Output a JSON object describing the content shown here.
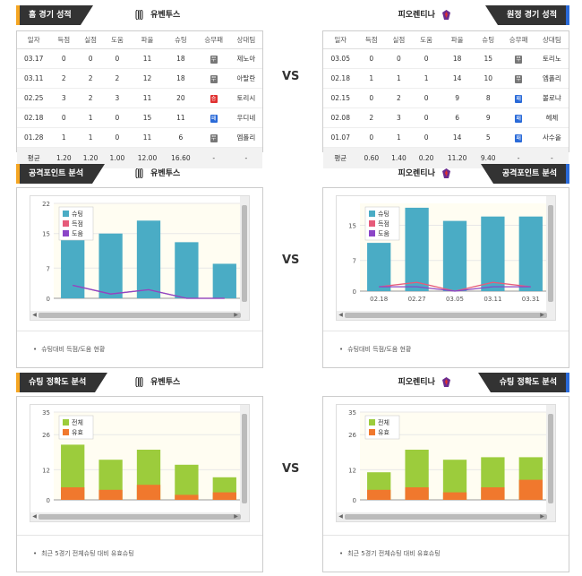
{
  "vs_label": "VS",
  "teams": {
    "home": "유벤투스",
    "away": "피오렌티나"
  },
  "record": {
    "home": {
      "title": "홈 경기 성적",
      "headers": [
        "일자",
        "득점",
        "실점",
        "도움",
        "파울",
        "슈팅",
        "승무패",
        "상대팀"
      ],
      "rows": [
        [
          "03.17",
          "0",
          "0",
          "0",
          "11",
          "18",
          "무",
          "제노아"
        ],
        [
          "03.11",
          "2",
          "2",
          "2",
          "12",
          "18",
          "무",
          "아탈란"
        ],
        [
          "02.25",
          "3",
          "2",
          "3",
          "11",
          "20",
          "승",
          "토리시"
        ],
        [
          "02.18",
          "0",
          "1",
          "0",
          "15",
          "11",
          "패",
          "우디네"
        ],
        [
          "01.28",
          "1",
          "1",
          "0",
          "11",
          "6",
          "무",
          "엠폴리"
        ]
      ],
      "avg": [
        "평균",
        "1.20",
        "1.20",
        "1.00",
        "12.00",
        "16.60",
        "-",
        "-"
      ]
    },
    "away": {
      "title": "원정 경기 성적",
      "headers": [
        "일자",
        "득점",
        "실점",
        "도움",
        "파울",
        "슈팅",
        "승무패",
        "상대팀"
      ],
      "rows": [
        [
          "03.05",
          "0",
          "0",
          "0",
          "18",
          "15",
          "무",
          "토리노"
        ],
        [
          "02.18",
          "1",
          "1",
          "1",
          "14",
          "10",
          "무",
          "엠폴리"
        ],
        [
          "02.15",
          "0",
          "2",
          "0",
          "9",
          "8",
          "패",
          "볼로냐"
        ],
        [
          "02.08",
          "2",
          "3",
          "0",
          "6",
          "9",
          "패",
          "헤체"
        ],
        [
          "01.07",
          "0",
          "1",
          "0",
          "14",
          "5",
          "패",
          "사수올"
        ]
      ],
      "avg": [
        "평균",
        "0.60",
        "1.40",
        "0.20",
        "11.20",
        "9.40",
        "-",
        "-"
      ]
    }
  },
  "attack": {
    "title": "공격포인트 분석",
    "caption": "슈팅대비 득점/도움 현황",
    "colors": {
      "shoot": "#4aacc5",
      "goal": "#e65b7a",
      "assist": "#8b45c7"
    },
    "home": {
      "chart_data": {
        "type": "bar",
        "categories": [
          "",
          "",
          "",
          "",
          ""
        ],
        "series": [
          {
            "name": "슈팅",
            "values": [
              14,
              15,
              18,
              13,
              8
            ]
          },
          {
            "name": "득점",
            "values": [
              3,
              1,
              2,
              0,
              0
            ]
          },
          {
            "name": "도움",
            "values": [
              3,
              1,
              2,
              0,
              0
            ]
          }
        ],
        "yticks": [
          "22",
          "15",
          "7",
          "0"
        ],
        "ylim": [
          0,
          22
        ]
      }
    },
    "away": {
      "chart_data": {
        "type": "bar",
        "categories": [
          "02.18",
          "02.27",
          "03.05",
          "03.11",
          "03.31"
        ],
        "series": [
          {
            "name": "슈팅",
            "values": [
              11,
              19,
              16,
              17,
              17
            ]
          },
          {
            "name": "득점",
            "values": [
              1,
              2,
              0,
              2,
              1
            ]
          },
          {
            "name": "도움",
            "values": [
              1,
              1,
              0,
              1,
              1
            ]
          }
        ],
        "yticks": [
          "15",
          "7",
          "0"
        ],
        "ylim": [
          0,
          20
        ]
      }
    }
  },
  "accuracy": {
    "title": "슈팅 정확도 분석",
    "caption": "최근 5경기 전체슈팅 대비 유효슈팅",
    "colors": {
      "total": "#9ccc3c",
      "on_target": "#f0782d"
    },
    "home": {
      "chart_data": {
        "type": "bar",
        "categories": [
          "",
          "",
          "",
          "",
          ""
        ],
        "series": [
          {
            "name": "전체",
            "values": [
              22,
              16,
              20,
              14,
              9
            ]
          },
          {
            "name": "유효",
            "values": [
              5,
              4,
              6,
              2,
              3
            ]
          }
        ],
        "yticks": [
          "35",
          "26",
          "12",
          "0"
        ],
        "ylim": [
          0,
          35
        ]
      }
    },
    "away": {
      "chart_data": {
        "type": "bar",
        "categories": [
          "",
          "",
          "",
          "",
          ""
        ],
        "series": [
          {
            "name": "전체",
            "values": [
              11,
              20,
              16,
              17,
              17
            ]
          },
          {
            "name": "유효",
            "values": [
              4,
              5,
              3,
              5,
              8
            ]
          }
        ],
        "yticks": [
          "35",
          "26",
          "12",
          "0"
        ],
        "ylim": [
          0,
          35
        ]
      }
    }
  }
}
